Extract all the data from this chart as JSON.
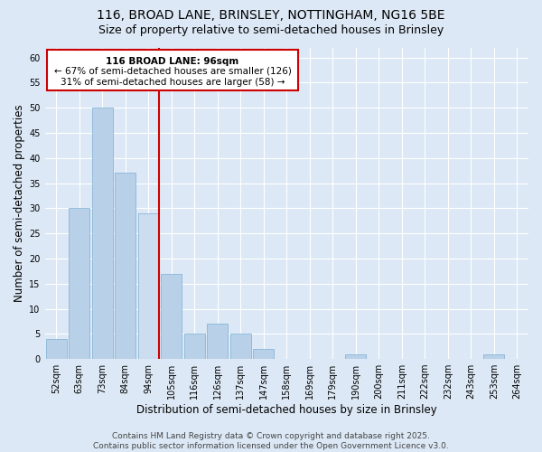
{
  "title_line1": "116, BROAD LANE, BRINSLEY, NOTTINGHAM, NG16 5BE",
  "title_line2": "Size of property relative to semi-detached houses in Brinsley",
  "xlabel": "Distribution of semi-detached houses by size in Brinsley",
  "ylabel": "Number of semi-detached properties",
  "categories": [
    "52sqm",
    "63sqm",
    "73sqm",
    "84sqm",
    "94sqm",
    "105sqm",
    "116sqm",
    "126sqm",
    "137sqm",
    "147sqm",
    "158sqm",
    "169sqm",
    "179sqm",
    "190sqm",
    "200sqm",
    "211sqm",
    "222sqm",
    "232sqm",
    "243sqm",
    "253sqm",
    "264sqm"
  ],
  "values": [
    4,
    30,
    50,
    37,
    29,
    17,
    5,
    7,
    5,
    2,
    0,
    0,
    0,
    1,
    0,
    0,
    0,
    0,
    0,
    1,
    0
  ],
  "bar_color_normal": "#b8d0e8",
  "bar_color_highlight": "#ccddf0",
  "bar_edge_color": "#7aafd4",
  "highlight_bar_index": 4,
  "vline_color": "#cc0000",
  "annotation_title": "116 BROAD LANE: 96sqm",
  "annotation_line1": "← 67% of semi-detached houses are smaller (126)",
  "annotation_line2": "31% of semi-detached houses are larger (58) →",
  "annotation_box_color": "#cc0000",
  "ylim": [
    0,
    62
  ],
  "yticks": [
    0,
    5,
    10,
    15,
    20,
    25,
    30,
    35,
    40,
    45,
    50,
    55,
    60
  ],
  "bg_color": "#dce8f5",
  "footer": "Contains HM Land Registry data © Crown copyright and database right 2025.\nContains public sector information licensed under the Open Government Licence v3.0.",
  "title_fontsize": 10,
  "subtitle_fontsize": 9,
  "axis_label_fontsize": 8.5,
  "tick_fontsize": 7,
  "footer_fontsize": 6.5,
  "annotation_fontsize": 7.5
}
